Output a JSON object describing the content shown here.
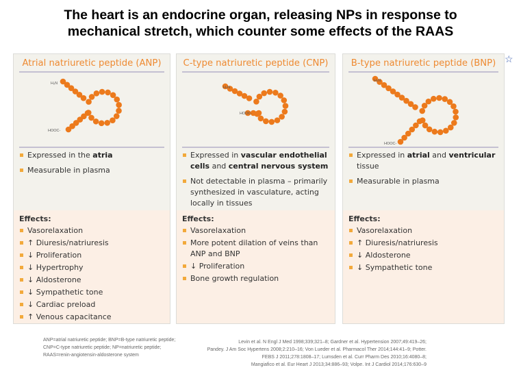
{
  "title": [
    "The heart is an endocrine organ, releasing NPs in response to",
    "mechanical stretch, which counter some effects of the RAAS"
  ],
  "accent": "#ee8a32",
  "panels": [
    {
      "header": "Atrial natriuretic peptide (ANP)",
      "bullets": [
        [
          "Expressed in the ",
          "atria",
          ""
        ],
        [
          "Measurable in plasma",
          "",
          ""
        ]
      ],
      "effects_label": "Effects:",
      "effects": [
        "Vasorelaxation",
        "↑ Diuresis/natriuresis",
        "↓ Proliferation",
        "↓ Hypertrophy",
        "↓ Aldosterone",
        "↓ Sympathetic tone",
        "↓ Cardiac preload",
        "↑ Venous capacitance"
      ]
    },
    {
      "header": "C-type natriuretic peptide (CNP)",
      "bullets": [
        [
          "Expressed in ",
          "vascular endothelial cells",
          " and ",
          "central nervous system"
        ],
        [
          "Not detectable in plasma – primarily synthesized in vasculature, acting locally in tissues"
        ]
      ],
      "effects_label": "Effects:",
      "effects": [
        "Vasorelaxation",
        "More potent dilation of veins than ANP and BNP",
        "↓ Proliferation",
        "Bone growth regulation"
      ]
    },
    {
      "header": "B-type natriuretic peptide (BNP)",
      "bullets": [
        [
          "Expressed in ",
          "atrial",
          " and ",
          "ventricular",
          " tissue"
        ],
        [
          "Measurable in plasma"
        ]
      ],
      "effects_label": "Effects:",
      "effects": [
        "Vasorelaxation",
        "↑ Diuresis/natriuresis",
        "↓ Aldosterone",
        "↓ Sympathetic tone"
      ]
    }
  ],
  "peptide_labels": {
    "n_terminus": "H₂N",
    "c_terminus": "HOOC-"
  },
  "footnote_abbrev": "ANP=atrial natriuretic peptide; BNP=B-type natriuretic peptide; CNP=C-type natriuretic peptide; NP=natriuretic peptide; RAAS=renin-angiotensin-aldosterone system",
  "references": [
    "Levin et al. N Engl J Med 1998;339;321–8; Gardner et al. Hypertension 2007;49:419–26;",
    "Pandey. J Am Soc Hypertens 2008;2:210–16; Von Lueder et al. Pharmacol Ther 2014;144:41–9; Potter.",
    "FEBS J 2011;278:1808–17; Lumsden et al. Curr Pharm Des 2010;16:4080–8;",
    "Mangiafico et al. Eur Heart J 2013;34:886–93; Volpe. Int J Cardiol 2014;176:630–9"
  ],
  "star_icon": "star-outline-icon"
}
